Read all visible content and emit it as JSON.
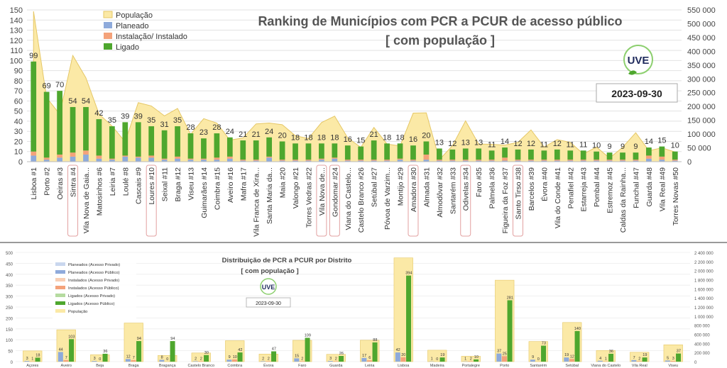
{
  "chart_data": [
    {
      "type": "bar",
      "title": "Ranking de Municípios com PCR a PCUR de acesso público",
      "subtitle": "[ com população ]",
      "date": "2023-09-30",
      "logo_text": "UVE",
      "ylim": [
        0,
        150
      ],
      "y_ticks": [
        0,
        10,
        20,
        30,
        40,
        50,
        60,
        70,
        80,
        90,
        100,
        110,
        120,
        130,
        140,
        150
      ],
      "y2lim": [
        0,
        550000
      ],
      "y2_ticks": [
        "0",
        "50 000",
        "100 000",
        "150 000",
        "200 000",
        "250 000",
        "300 000",
        "350 000",
        "400 000",
        "450 000",
        "500 000",
        "550 000"
      ],
      "legend": [
        "População",
        "Planeado",
        "Instalação/ Instalado",
        "Ligado"
      ],
      "colors": {
        "populacao": "#fbe9a6",
        "populacao_line": "#e5c766",
        "planeado": "#8eaadb",
        "instalacao": "#f4a27a",
        "ligado": "#4ea72e"
      },
      "categories": [
        "Lisboa #1",
        "Porto #2",
        "Oeiras #3",
        "Sintra #4",
        "Vila Nova de Gaia...",
        "Matosinhos #6",
        "Leiria #7",
        "Loulé #8",
        "Cascais #9",
        "Loures #10",
        "Seixal #11",
        "Braga #12",
        "Viseu #13",
        "Guimarães #14",
        "Coimbra #15",
        "Aveiro #16",
        "Mafra #17",
        "Vila Franca de Xira...",
        "Santa Maria da...",
        "Maia #20",
        "Valongo #21",
        "Torres Vedras #22",
        "Vila Nova de...",
        "Gondomar #24",
        "Viana do Castelo...",
        "Castelo Branco #26",
        "Setúbal #27",
        "Póvoa de Varzim...",
        "Montijo #29",
        "Amadora #30",
        "Almada #31",
        "Almodôvar #32",
        "Santarém #33",
        "Odivelas #34",
        "Faro #35",
        "Palmela #36",
        "Figueira da Foz #37",
        "Santo Tirso #38",
        "Barcelos #39",
        "Évora #40",
        "Vila do Conde #41",
        "Penafiel #42",
        "Estarreja #43",
        "Pombal #44",
        "Estremoz #45",
        "Caldas da Rainha...",
        "Funchal #47",
        "Guarda #48",
        "Vila Real #49",
        "Torres Novas #50"
      ],
      "labels": [
        "99",
        "69",
        "70",
        "54",
        "54",
        "42",
        "35",
        "39",
        "39",
        "35",
        "31",
        "35",
        "28",
        "23",
        "28",
        "24",
        "21",
        "21",
        "24",
        "20",
        "18",
        "18",
        "18",
        "18",
        "16",
        "15",
        "21",
        "18",
        "18",
        "16",
        "20",
        "13",
        "12",
        "13",
        "13",
        "11",
        "14",
        "12",
        "12",
        "11",
        "12",
        "11",
        "11",
        "10",
        "9",
        "9",
        "9",
        "14",
        "15",
        "10"
      ],
      "highlighted": [
        3,
        9,
        22,
        23,
        29,
        33,
        37
      ],
      "series": [
        {
          "name": "Planeado",
          "values": [
            6,
            2,
            4,
            5,
            7,
            3,
            2,
            5,
            4,
            4,
            2,
            3,
            2,
            2,
            2,
            3,
            1,
            1,
            4,
            1,
            1,
            1,
            2,
            3,
            1,
            1,
            1,
            1,
            2,
            1,
            2,
            1,
            1,
            1,
            1,
            1,
            1,
            1,
            1,
            1,
            1,
            1,
            1,
            1,
            1,
            1,
            1,
            3,
            2,
            1
          ]
        },
        {
          "name": "Instalação/ Instalado",
          "values": [
            4,
            2,
            3,
            4,
            4,
            3,
            1,
            1,
            1,
            2,
            1,
            2,
            1,
            1,
            2,
            2,
            1,
            1,
            1,
            1,
            1,
            1,
            1,
            1,
            1,
            1,
            1,
            1,
            1,
            1,
            5,
            1,
            1,
            1,
            1,
            1,
            3,
            1,
            1,
            1,
            1,
            1,
            1,
            1,
            1,
            1,
            1,
            3,
            3,
            1
          ]
        },
        {
          "name": "Ligado",
          "values": [
            89,
            65,
            63,
            45,
            43,
            36,
            32,
            33,
            34,
            29,
            28,
            30,
            25,
            20,
            24,
            19,
            19,
            19,
            19,
            18,
            16,
            16,
            15,
            14,
            14,
            13,
            19,
            16,
            15,
            14,
            13,
            11,
            10,
            11,
            11,
            9,
            10,
            10,
            10,
            9,
            10,
            9,
            9,
            8,
            7,
            7,
            7,
            8,
            10,
            8
          ]
        },
        {
          "name": "População",
          "values": [
            545000,
            232000,
            172000,
            385000,
            304000,
            173000,
            129000,
            72000,
            214000,
            202000,
            166000,
            193000,
            99000,
            156000,
            140000,
            78000,
            86000,
            137000,
            140000,
            134000,
            94000,
            84000,
            142000,
            165000,
            86000,
            52000,
            124000,
            64000,
            57000,
            176000,
            177000,
            7000,
            58000,
            148000,
            64000,
            63000,
            60000,
            70000,
            115000,
            53000,
            80000,
            70000,
            28000,
            53000,
            13000,
            52000,
            105000,
            40000,
            50000,
            35000
          ]
        }
      ]
    },
    {
      "type": "bar",
      "title": "Distribuição de PCR a PCUR por Distrito",
      "subtitle": "[ com população ]",
      "date": "2023-09-30",
      "logo_text": "UVE",
      "ylim": [
        0,
        500
      ],
      "y_ticks": [
        0,
        50,
        100,
        150,
        200,
        250,
        300,
        350,
        400,
        450,
        500
      ],
      "y2lim": [
        0,
        2400000
      ],
      "y2_ticks": [
        "0",
        "200 000",
        "400 000",
        "600 000",
        "800 000",
        "1 000 000",
        "1 200 000",
        "1 400 000",
        "1 600 000",
        "1 800 000",
        "2 000 000",
        "2 200 000",
        "2 400 000"
      ],
      "legend": [
        "Planeados (Acesso Privado)",
        "Planeados (Acesso Público)",
        "Instalados (Acesso Privado)",
        "Instalados (Acesso Público)",
        "Ligados (Acesso Privado)",
        "Ligados (Acesso Público)",
        "População"
      ],
      "legend_colors": [
        "#c9d7ee",
        "#8eaadb",
        "#f8cfb5",
        "#f4a27a",
        "#b5dba0",
        "#4ea72e",
        "#fbe9a6"
      ],
      "categories": [
        "Açores",
        "Aveiro",
        "Beja",
        "Braga",
        "Bragança",
        "Castelo Branco",
        "Coimbra",
        "Évora",
        "Faro",
        "Guarda",
        "Leiria",
        "Lisboa",
        "Madeira",
        "Portalegre",
        "Porto",
        "Santarém",
        "Setúbal",
        "Viana do Castelo",
        "Vila Real",
        "Viseu"
      ],
      "series": [
        {
          "name": "Planeados (Acesso Público)",
          "values": [
            3,
            44,
            3,
            12,
            8,
            2,
            9,
            2,
            15,
            3,
            17,
            42,
            1,
            1,
            37,
            9,
            19,
            4,
            7,
            5
          ]
        },
        {
          "name": "Instalados (Acesso Público)",
          "values": [
            1,
            7,
            0,
            7,
            0,
            2,
            10,
            2,
            2,
            2,
            6,
            20,
            0,
            2,
            25,
            0,
            12,
            1,
            2,
            3
          ]
        },
        {
          "name": "Ligados (Acesso Público)",
          "values": [
            18,
            103,
            36,
            94,
            94,
            30,
            42,
            47,
            109,
            26,
            88,
            394,
            19,
            10,
            281,
            73,
            140,
            36,
            19,
            37
          ]
        },
        {
          "name": "População",
          "values": [
            236000,
            700000,
            152000,
            848000,
            136000,
            190000,
            460000,
            166000,
            468000,
            160000,
            470000,
            2280000,
            251000,
            118000,
            1790000,
            442000,
            860000,
            244000,
            206000,
            370000
          ]
        }
      ]
    }
  ]
}
